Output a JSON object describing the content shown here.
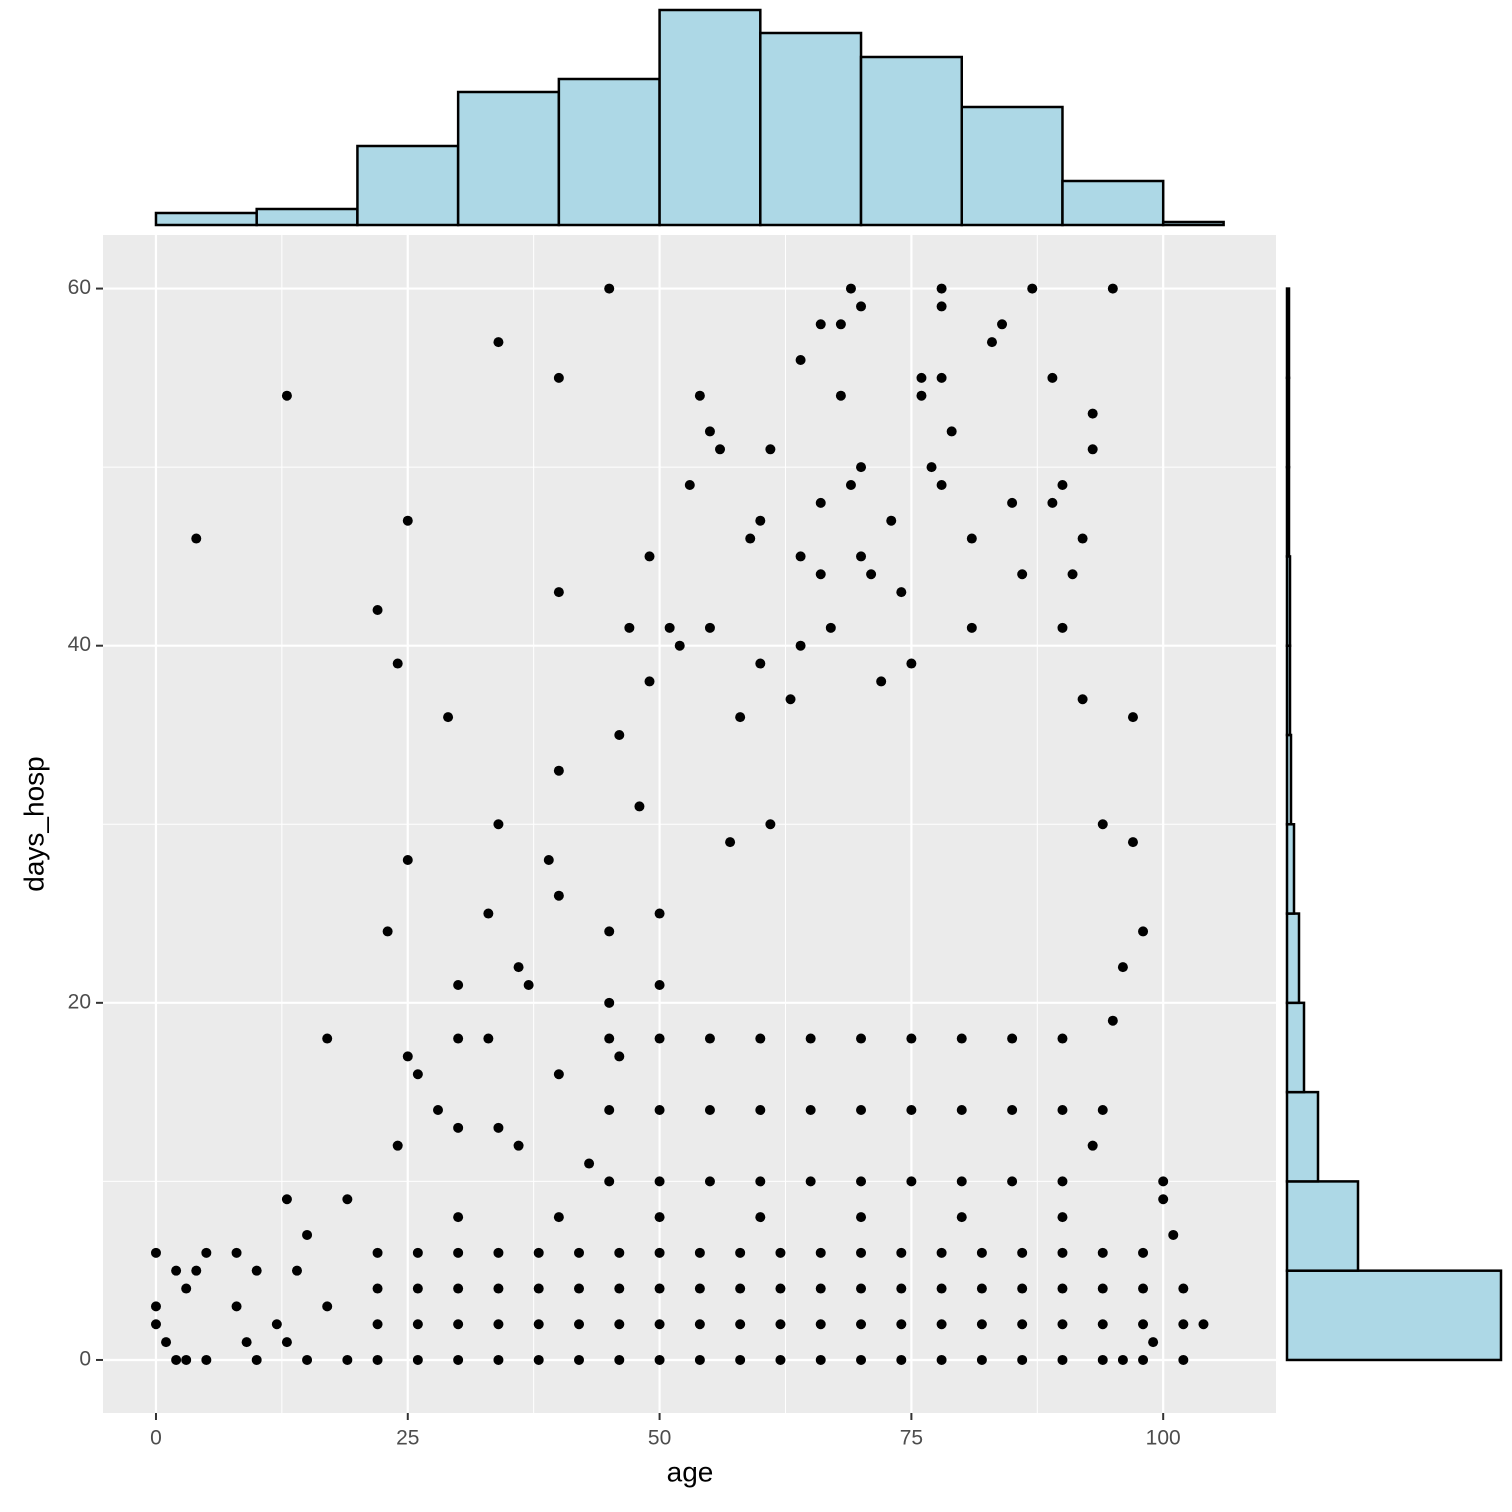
{
  "chart_data": [
    {
      "type": "scatter",
      "x_label": "age",
      "y_label": "days_hosp",
      "color": "#000000",
      "xlim": [
        -5.26,
        111.2
      ],
      "ylim": [
        -2.97,
        63.0
      ],
      "xticks": [
        0,
        25,
        50,
        75,
        100
      ],
      "yticks": [
        0,
        20,
        40,
        60
      ],
      "x_minor_ticks": [
        12.5,
        37.5,
        62.5,
        87.5
      ],
      "y_minor_ticks": [
        10,
        30,
        50
      ],
      "grid": true,
      "x": [
        0,
        0,
        0,
        1,
        2,
        3,
        2,
        3,
        4,
        4,
        5,
        5,
        8,
        8,
        9,
        10,
        10,
        12,
        13,
        13,
        13,
        14,
        15,
        15,
        17,
        17,
        19,
        19,
        22,
        23,
        24,
        24,
        25,
        25,
        25,
        26,
        28,
        29,
        30,
        30,
        30,
        33,
        33,
        34,
        34,
        34,
        36,
        36,
        37,
        39,
        40,
        40,
        40,
        40,
        40,
        43,
        45,
        45,
        45,
        46,
        46,
        47,
        48,
        49,
        49,
        50,
        50,
        51,
        52,
        53,
        54,
        55,
        55,
        56,
        57,
        58,
        59,
        60,
        60,
        61,
        61,
        63,
        64,
        64,
        64,
        66,
        66,
        66,
        67,
        68,
        68,
        69,
        69,
        70,
        70,
        70,
        71,
        72,
        73,
        74,
        75,
        76,
        76,
        77,
        78,
        78,
        78,
        78,
        79,
        81,
        81,
        83,
        84,
        85,
        86,
        87,
        89,
        89,
        90,
        90,
        91,
        92,
        92,
        93,
        93,
        94,
        95,
        96,
        97,
        97,
        98,
        100,
        100,
        101,
        102,
        102,
        102,
        104,
        99,
        96,
        95,
        94,
        93,
        22,
        22,
        22,
        22,
        26,
        26,
        26,
        26,
        30,
        30,
        30,
        30,
        34,
        34,
        34,
        34,
        38,
        38,
        38,
        38,
        42,
        42,
        42,
        42,
        46,
        46,
        46,
        46,
        50,
        50,
        50,
        50,
        54,
        54,
        54,
        54,
        58,
        58,
        58,
        58,
        62,
        62,
        62,
        62,
        66,
        66,
        66,
        66,
        70,
        70,
        70,
        70,
        74,
        74,
        74,
        74,
        78,
        78,
        78,
        78,
        82,
        82,
        82,
        82,
        86,
        86,
        86,
        86,
        90,
        90,
        90,
        90,
        94,
        94,
        94,
        94,
        98,
        98,
        98,
        98,
        45,
        45,
        45,
        50,
        50,
        50,
        55,
        55,
        55,
        60,
        60,
        60,
        65,
        65,
        65,
        70,
        70,
        70,
        75,
        75,
        75,
        80,
        80,
        80,
        85,
        85,
        85,
        90,
        90,
        90,
        30,
        40,
        50,
        60,
        70,
        80,
        90
      ],
      "y": [
        6,
        3,
        2,
        1,
        0,
        0,
        5,
        4,
        5,
        46,
        6,
        0,
        6,
        3,
        1,
        0,
        5,
        2,
        54,
        9,
        1,
        5,
        7,
        0,
        18,
        3,
        9,
        0,
        42,
        24,
        39,
        12,
        47,
        28,
        17,
        16,
        14,
        36,
        21,
        18,
        13,
        25,
        18,
        57,
        30,
        13,
        12,
        22,
        21,
        28,
        55,
        43,
        33,
        26,
        16,
        11,
        60,
        24,
        20,
        35,
        17,
        41,
        31,
        45,
        38,
        25,
        21,
        41,
        40,
        49,
        54,
        52,
        41,
        51,
        29,
        36,
        46,
        39,
        47,
        51,
        30,
        37,
        56,
        45,
        40,
        58,
        48,
        44,
        41,
        58,
        54,
        60,
        49,
        59,
        50,
        45,
        44,
        38,
        47,
        43,
        39,
        54,
        55,
        50,
        60,
        59,
        49,
        55,
        52,
        46,
        41,
        57,
        58,
        48,
        44,
        60,
        55,
        48,
        49,
        41,
        44,
        46,
        37,
        53,
        51,
        30,
        60,
        22,
        36,
        29,
        24,
        10,
        9,
        7,
        4,
        0,
        2,
        2,
        1,
        0,
        19,
        14,
        12,
        0,
        2,
        4,
        6,
        0,
        2,
        4,
        6,
        0,
        2,
        4,
        6,
        0,
        2,
        4,
        6,
        0,
        2,
        4,
        6,
        0,
        2,
        4,
        6,
        0,
        2,
        4,
        6,
        0,
        2,
        4,
        6,
        0,
        2,
        4,
        6,
        0,
        2,
        4,
        6,
        0,
        2,
        4,
        6,
        0,
        2,
        4,
        6,
        0,
        2,
        4,
        6,
        0,
        2,
        4,
        6,
        0,
        2,
        4,
        6,
        0,
        2,
        4,
        6,
        0,
        2,
        4,
        6,
        0,
        2,
        4,
        6,
        0,
        2,
        4,
        6,
        0,
        2,
        4,
        6,
        10,
        14,
        18,
        10,
        14,
        18,
        10,
        14,
        18,
        10,
        14,
        18,
        10,
        14,
        18,
        10,
        14,
        18,
        10,
        14,
        18,
        10,
        14,
        18,
        10,
        14,
        18,
        10,
        14,
        18,
        8,
        8,
        8,
        8,
        8,
        8,
        8
      ]
    },
    {
      "type": "histogram",
      "orientation": "vertical",
      "color": "#add8e6",
      "bins": [
        0,
        10,
        20,
        30,
        40,
        50,
        60,
        70,
        80,
        90,
        100,
        106
      ],
      "counts": [
        12,
        16,
        79,
        133,
        146,
        215,
        192,
        168,
        118,
        44,
        3
      ],
      "count_lim": [
        0,
        215
      ]
    },
    {
      "type": "histogram",
      "orientation": "horizontal",
      "color": "#add8e6",
      "bins": [
        0,
        5,
        10,
        15,
        20,
        25,
        30,
        35,
        40,
        45,
        50,
        55,
        60
      ],
      "counts": [
        214,
        71,
        31,
        17,
        12,
        7,
        4,
        3,
        3,
        2,
        2,
        2
      ],
      "count_lim": [
        0,
        214
      ]
    }
  ]
}
